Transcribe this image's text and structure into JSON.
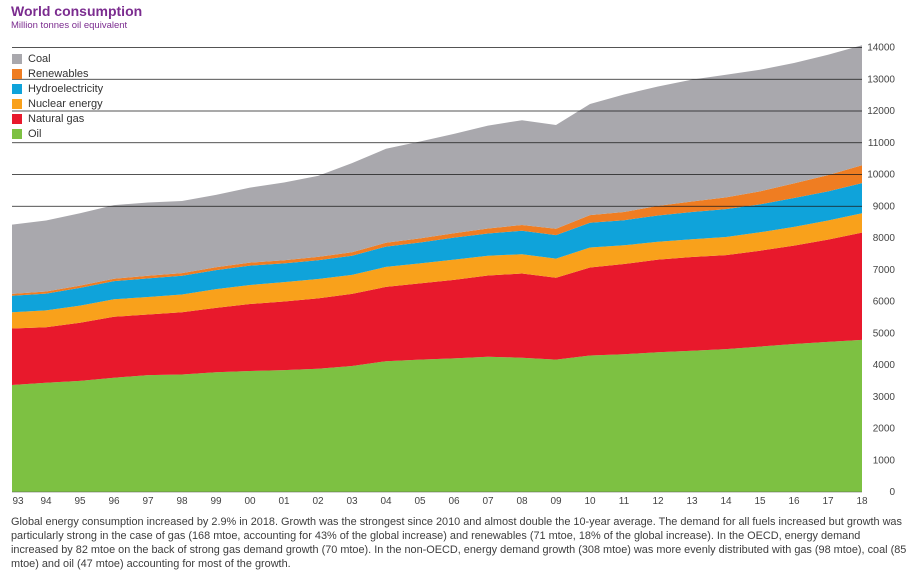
{
  "header": {
    "title": "World consumption",
    "subtitle": "Million tonnes oil equivalent"
  },
  "caption": "Global energy consumption increased by 2.9% in 2018. Growth was the strongest since 2010 and almost double the 10-year average. The demand for all fuels increased but growth was particularly strong in the case of gas (168 mtoe, accounting for 43% of the global increase) and renewables (71 mtoe, 18% of the global increase). In the OECD, energy demand increased by 82 mtoe on the back of strong gas demand growth (70 mtoe). In the non-OECD, energy demand growth (308 mtoe) was more evenly distributed with gas (98 mtoe), coal (85 mtoe) and oil (47 mtoe) accounting for most of the growth.",
  "colors": {
    "Coal": "#a9a8ad",
    "Renewables": "#ef7d22",
    "Hydroelectricity": "#0fa3da",
    "Nuclear energy": "#f9a11b",
    "Natural gas": "#e8192c",
    "Oil": "#7dc142"
  },
  "chart_data": {
    "type": "area",
    "stacked": true,
    "title": "World consumption",
    "ylabel": "Million tonnes oil equivalent",
    "x": [
      "93",
      "94",
      "95",
      "96",
      "97",
      "98",
      "99",
      "00",
      "01",
      "02",
      "03",
      "04",
      "05",
      "06",
      "07",
      "08",
      "09",
      "10",
      "11",
      "12",
      "13",
      "14",
      "15",
      "16",
      "17",
      "18"
    ],
    "ylim": [
      0,
      14000
    ],
    "yticks": [
      0,
      1000,
      2000,
      3000,
      4000,
      5000,
      6000,
      7000,
      8000,
      9000,
      10000,
      11000,
      12000,
      13000,
      14000
    ],
    "y_axis_position": "right",
    "legend_position": "top-left",
    "legend_order": [
      "Coal",
      "Renewables",
      "Hydroelectricity",
      "Nuclear energy",
      "Natural gas",
      "Oil"
    ],
    "series": [
      {
        "name": "Oil",
        "values": [
          3370,
          3440,
          3500,
          3600,
          3680,
          3700,
          3770,
          3810,
          3840,
          3880,
          3970,
          4120,
          4170,
          4210,
          4260,
          4230,
          4170,
          4300,
          4340,
          4400,
          4450,
          4500,
          4580,
          4660,
          4730,
          4790
        ]
      },
      {
        "name": "Natural gas",
        "values": [
          1780,
          1750,
          1830,
          1920,
          1910,
          1960,
          2030,
          2110,
          2160,
          2220,
          2270,
          2340,
          2400,
          2470,
          2560,
          2650,
          2580,
          2770,
          2840,
          2920,
          2950,
          2960,
          3020,
          3100,
          3220,
          3380
        ]
      },
      {
        "name": "Nuclear energy",
        "values": [
          510,
          530,
          540,
          550,
          550,
          560,
          590,
          600,
          610,
          610,
          600,
          630,
          630,
          640,
          620,
          610,
          600,
          630,
          590,
          560,
          560,
          570,
          580,
          590,
          600,
          610
        ]
      },
      {
        "name": "Hydroelectricity",
        "values": [
          520,
          530,
          560,
          570,
          590,
          590,
          600,
          610,
          590,
          590,
          600,
          640,
          660,
          690,
          700,
          740,
          740,
          780,
          790,
          830,
          860,
          880,
          880,
          910,
          920,
          950
        ]
      },
      {
        "name": "Renewables",
        "values": [
          60,
          65,
          70,
          75,
          80,
          85,
          90,
          95,
          100,
          105,
          110,
          120,
          130,
          140,
          160,
          180,
          200,
          240,
          260,
          300,
          330,
          370,
          410,
          460,
          510,
          560
        ]
      },
      {
        "name": "Coal",
        "values": [
          2180,
          2235,
          2280,
          2320,
          2310,
          2270,
          2280,
          2360,
          2450,
          2550,
          2810,
          2960,
          3050,
          3130,
          3240,
          3300,
          3270,
          3500,
          3700,
          3760,
          3840,
          3860,
          3830,
          3790,
          3790,
          3780
        ]
      }
    ]
  }
}
